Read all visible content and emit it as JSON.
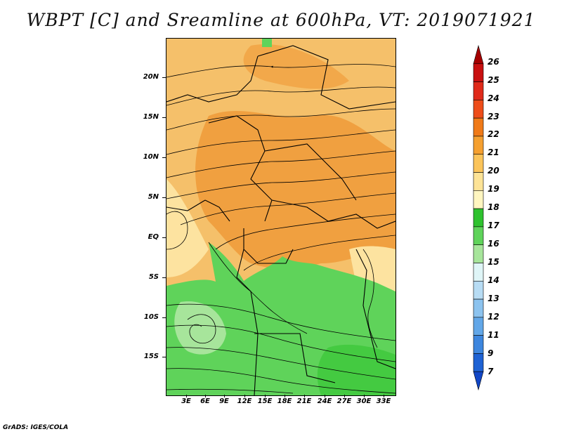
{
  "title": "WBPT [C] and Sreamline at 600hPa, VT: 2019071921",
  "footer": "GrADS: IGES/COLA",
  "map": {
    "lat_labels": [
      "20N",
      "15N",
      "10N",
      "5N",
      "EQ",
      "5S",
      "10S",
      "15S"
    ],
    "lon_labels": [
      "3E",
      "6E",
      "9E",
      "12E",
      "15E",
      "18E",
      "21E",
      "24E",
      "27E",
      "30E",
      "33E"
    ]
  },
  "colorbar": {
    "labels": [
      "26",
      "25",
      "24",
      "23",
      "22",
      "21",
      "20",
      "19",
      "18",
      "17",
      "16",
      "15",
      "14",
      "13",
      "12",
      "11",
      "9",
      "7"
    ],
    "colors": [
      "#a50000",
      "#c81010",
      "#e02a1a",
      "#ee4d1a",
      "#f07a18",
      "#f5a030",
      "#fbc45a",
      "#fde396",
      "#fff6c0",
      "#2ec22e",
      "#5fd35a",
      "#a7e59b",
      "#dff5f7",
      "#b7dcf4",
      "#8cc3ef",
      "#62a7e8",
      "#3d86de",
      "#1e62d4",
      "#1146c6"
    ]
  }
}
